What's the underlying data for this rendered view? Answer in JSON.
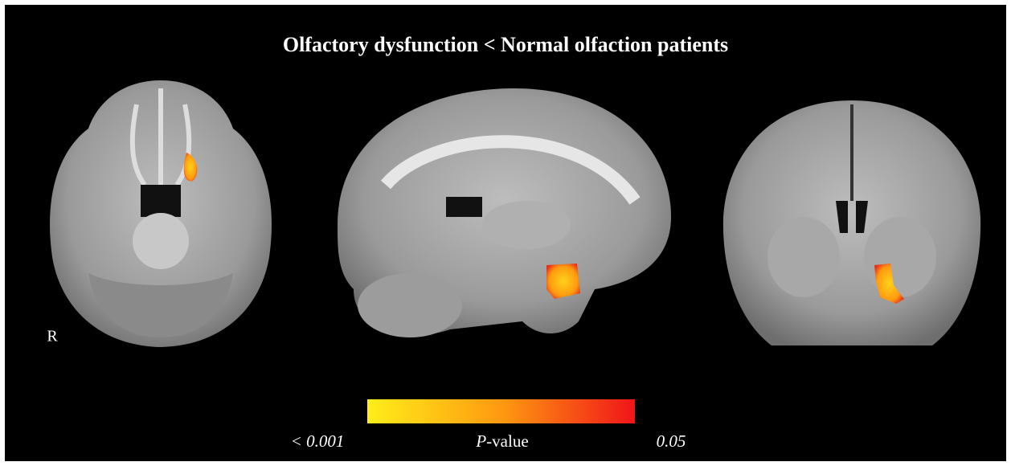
{
  "figure": {
    "title": "Olfactory dysfunction < Normal olfaction patients",
    "orientation_label": "R",
    "colorbar": {
      "min_label": "< 0.001",
      "label_italic": "P",
      "label_rest": "-value",
      "max_label": "0.05"
    }
  }
}
